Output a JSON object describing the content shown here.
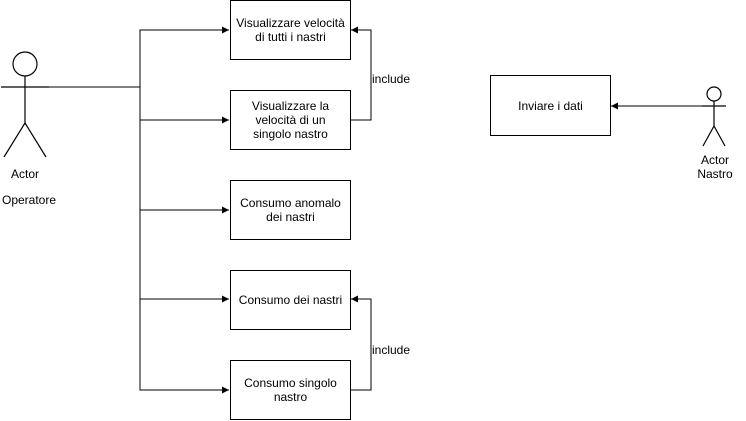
{
  "actors": {
    "operatore": {
      "line1": "Actor",
      "line2": "Operatore"
    },
    "nastro": {
      "line1": "Actor",
      "line2": "Nastro"
    }
  },
  "use_cases": {
    "vel_tutti": "Visualizzare velocità di tutti i nastri",
    "vel_singolo": "Visualizzare la velocità di un singolo nastro",
    "anomalo": "Consumo anomalo dei nastri",
    "consumo": "Consumo dei nastri",
    "consumo_singolo": "Consumo singolo nastro",
    "inviare": "Inviare i dati"
  },
  "relations": {
    "include_top": "include",
    "include_bottom": "include"
  }
}
